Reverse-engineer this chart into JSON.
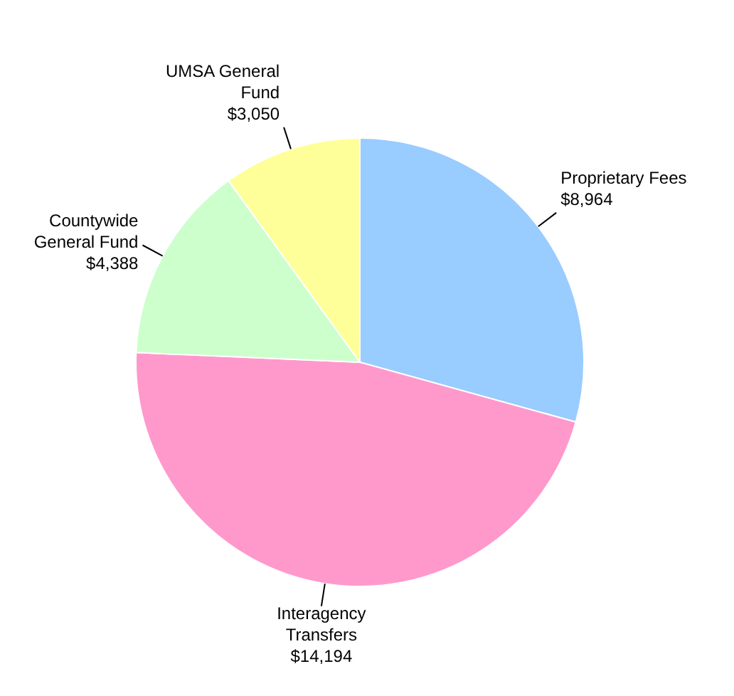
{
  "chart_data": {
    "type": "pie",
    "categories": [
      "Proprietary Fees",
      "Interagency Transfers",
      "Countywide General Fund",
      "UMSA General Fund"
    ],
    "values": [
      8964,
      14194,
      4388,
      3050
    ],
    "value_labels": [
      "$8,964",
      "$14,194",
      "$4,388",
      "$3,050"
    ],
    "colors": [
      "#99ccff",
      "#ff99cc",
      "#ccffcc",
      "#ffff99"
    ],
    "legend": false
  }
}
